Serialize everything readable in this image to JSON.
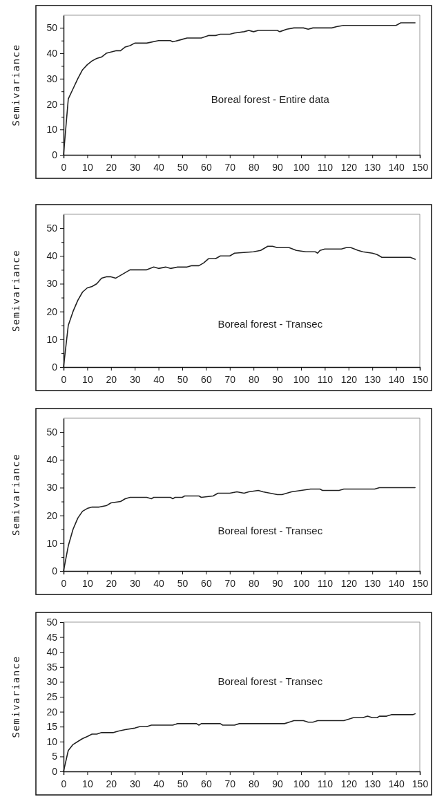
{
  "chart_data": [
    {
      "type": "line",
      "ylabel": "Semivariance",
      "annotations": [
        "Boreal forest - Entire data"
      ],
      "xlim": [
        0,
        150
      ],
      "xticks": [
        0,
        10,
        20,
        30,
        40,
        50,
        60,
        70,
        80,
        90,
        100,
        110,
        120,
        130,
        140,
        150
      ],
      "ylim": [
        0,
        55
      ],
      "yticks": [
        0,
        {
          "value": 5,
          "label": null
        },
        10,
        {
          "value": 15,
          "label": null
        },
        20,
        {
          "value": 25,
          "label": null
        },
        30,
        {
          "value": 35,
          "label": null
        },
        40,
        {
          "value": 45,
          "label": null
        },
        50
      ],
      "grid": false,
      "line_style": "solid",
      "marker": "none",
      "series": [
        {
          "color": "#222222",
          "x": [
            0,
            2,
            4,
            6,
            8,
            10,
            12,
            14,
            16,
            18,
            20,
            22,
            24,
            26,
            28,
            30,
            35,
            40,
            45,
            46,
            50,
            52,
            58,
            61,
            64,
            66,
            70,
            72,
            76,
            78,
            80,
            82,
            90,
            91,
            94,
            97,
            101,
            103,
            105,
            113,
            115,
            118,
            140,
            142,
            148
          ],
          "values": [
            0,
            22,
            26,
            30,
            33.5,
            35.5,
            37,
            38,
            38.5,
            40,
            40.5,
            41,
            41,
            42.5,
            43,
            44,
            44,
            45,
            45,
            44.5,
            45.5,
            46,
            46,
            47,
            47,
            47.5,
            47.5,
            48,
            48.5,
            49,
            48.5,
            49,
            49,
            48.5,
            49.5,
            50,
            50,
            49.5,
            50,
            50,
            50.5,
            51,
            51,
            52,
            52
          ]
        }
      ]
    },
    {
      "type": "line",
      "ylabel": "Semivariance",
      "annotations": [
        "Boreal forest - Transec"
      ],
      "xlim": [
        0,
        150
      ],
      "xticks": [
        0,
        10,
        20,
        30,
        40,
        50,
        60,
        70,
        80,
        90,
        100,
        110,
        120,
        130,
        140,
        150
      ],
      "ylim": [
        0,
        55
      ],
      "yticks": [
        0,
        {
          "value": 5,
          "label": null
        },
        10,
        {
          "value": 15,
          "label": null
        },
        20,
        {
          "value": 25,
          "label": null
        },
        30,
        {
          "value": 35,
          "label": null
        },
        40,
        {
          "value": 45,
          "label": null
        },
        50
      ],
      "grid": false,
      "line_style": "solid",
      "marker": "none",
      "series": [
        {
          "color": "#222222",
          "x": [
            0,
            2,
            4,
            6,
            8,
            10,
            12,
            14,
            16,
            18,
            20,
            22,
            24,
            26,
            28,
            35,
            38,
            40,
            43,
            45,
            48,
            52,
            54,
            57,
            59,
            61,
            64,
            66,
            68,
            70,
            72,
            80,
            83,
            86,
            88,
            90,
            95,
            98,
            102,
            106,
            107,
            108,
            110,
            117,
            119,
            121,
            124,
            126,
            130,
            132,
            134,
            146,
            148
          ],
          "values": [
            0,
            15,
            20,
            24,
            27,
            28.5,
            29,
            30,
            32,
            32.5,
            32.5,
            32,
            33,
            34,
            35,
            35,
            36,
            35.5,
            36,
            35.5,
            36,
            36,
            36.5,
            36.5,
            37.5,
            39,
            39,
            40,
            40,
            40,
            41,
            41.5,
            42,
            43.5,
            43.5,
            43,
            43,
            42,
            41.5,
            41.5,
            41,
            42,
            42.5,
            42.5,
            43,
            43,
            42,
            41.5,
            41,
            40.5,
            39.5,
            39.5,
            38.8
          ]
        }
      ]
    },
    {
      "type": "line",
      "ylabel": "Semivariance",
      "annotations": [
        "Boreal forest - Transec"
      ],
      "xlim": [
        0,
        150
      ],
      "xticks": [
        0,
        10,
        20,
        30,
        40,
        50,
        60,
        70,
        80,
        90,
        100,
        110,
        120,
        130,
        140,
        150
      ],
      "ylim": [
        0,
        55
      ],
      "yticks": [
        0,
        {
          "value": 5,
          "label": null
        },
        10,
        {
          "value": 15,
          "label": null
        },
        20,
        {
          "value": 25,
          "label": null
        },
        30,
        {
          "value": 35,
          "label": null
        },
        40,
        {
          "value": 45,
          "label": null
        },
        50
      ],
      "grid": false,
      "line_style": "solid",
      "marker": "none",
      "series": [
        {
          "color": "#222222",
          "x": [
            0,
            2,
            4,
            6,
            8,
            10,
            12,
            15,
            18,
            20,
            24,
            26,
            28,
            35,
            37,
            38,
            45,
            46,
            47,
            50,
            51,
            57,
            58,
            63,
            65,
            70,
            73,
            76,
            78,
            82,
            84,
            87,
            90,
            92,
            94,
            96,
            100,
            104,
            108,
            109,
            116,
            118,
            131,
            133,
            148
          ],
          "values": [
            0,
            9,
            15,
            19,
            21.5,
            22.5,
            23,
            23,
            23.5,
            24.5,
            25,
            26,
            26.5,
            26.5,
            26,
            26.5,
            26.5,
            26,
            26.5,
            26.5,
            27,
            27,
            26.5,
            27,
            28,
            28,
            28.5,
            28,
            28.5,
            29,
            28.5,
            28,
            27.5,
            27.5,
            28,
            28.5,
            29,
            29.5,
            29.5,
            29,
            29,
            29.5,
            29.5,
            30,
            30
          ]
        }
      ]
    },
    {
      "type": "line",
      "ylabel": "Semivariance",
      "annotations": [
        "Boreal forest - Transec"
      ],
      "xlim": [
        0,
        150
      ],
      "xticks": [
        0,
        10,
        20,
        30,
        40,
        50,
        60,
        70,
        80,
        90,
        100,
        110,
        120,
        130,
        140,
        150
      ],
      "ylim": [
        0,
        50
      ],
      "yticks": [
        0,
        5,
        10,
        15,
        20,
        25,
        30,
        35,
        40,
        45,
        50
      ],
      "grid": false,
      "line_style": "solid",
      "marker": "none",
      "series": [
        {
          "color": "#222222",
          "x": [
            0,
            2,
            4,
            6,
            8,
            10,
            12,
            14,
            16,
            21,
            23,
            26,
            30,
            32,
            35,
            37,
            46,
            48,
            56,
            57,
            58,
            66,
            67,
            72,
            74,
            93,
            95,
            97,
            101,
            103,
            105,
            107,
            118,
            120,
            122,
            126,
            128,
            130,
            132,
            133,
            136,
            138,
            147,
            148
          ],
          "values": [
            0,
            7,
            9,
            10,
            11,
            11.7,
            12.5,
            12.5,
            13,
            13,
            13.5,
            14,
            14.5,
            15,
            15,
            15.5,
            15.5,
            16,
            16,
            15.5,
            16,
            16,
            15.5,
            15.5,
            16,
            16,
            16.5,
            17,
            17,
            16.5,
            16.5,
            17,
            17,
            17.5,
            18,
            18,
            18.5,
            18,
            18,
            18.5,
            18.5,
            19,
            19,
            19.3
          ]
        }
      ]
    }
  ]
}
